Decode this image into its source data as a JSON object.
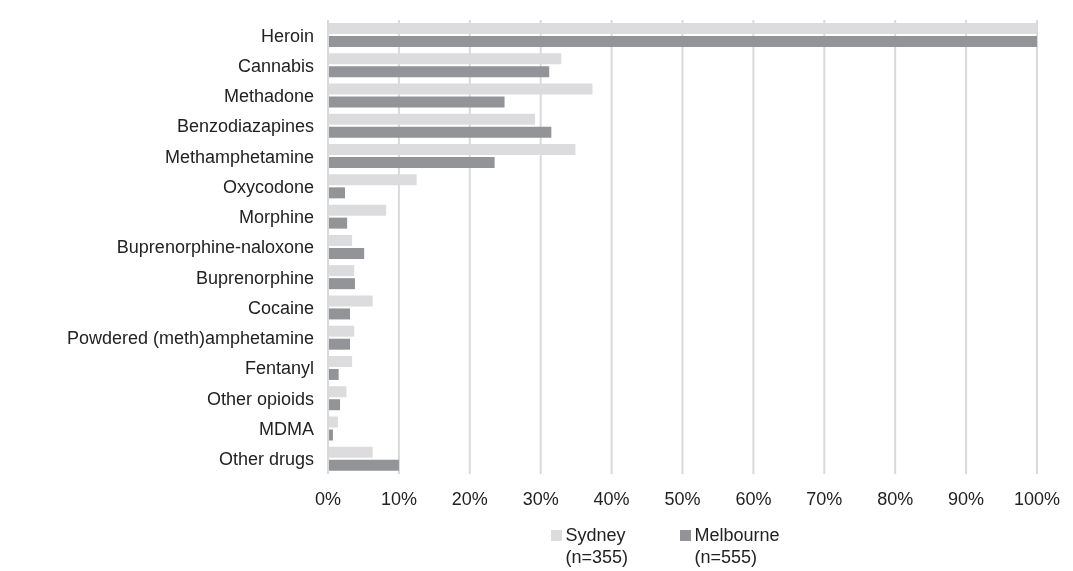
{
  "chart_data": {
    "type": "bar",
    "orientation": "horizontal",
    "categories": [
      "Heroin",
      "Cannabis",
      "Methadone",
      "Benzodiazapines",
      "Methamphetamine",
      "Oxycodone",
      "Morphine",
      "Buprenorphine-naloxone",
      "Buprenorphine",
      "Cocaine",
      "Powdered (meth)amphetamine",
      "Fentanyl",
      "Other opioids",
      "MDMA",
      "Other drugs"
    ],
    "series": [
      {
        "name": "Sydney (n=355)",
        "color": "#dcdcde",
        "values": [
          100,
          32.9,
          37.3,
          29.2,
          34.9,
          12.5,
          8.2,
          3.4,
          3.7,
          6.3,
          3.7,
          3.4,
          2.6,
          1.4,
          6.3
        ]
      },
      {
        "name": "Melbourne (n=555)",
        "color": "#939497",
        "values": [
          100,
          31.2,
          24.9,
          31.5,
          23.5,
          2.4,
          2.7,
          5.1,
          3.8,
          3.1,
          3.1,
          1.5,
          1.7,
          0.7,
          10.0
        ]
      }
    ],
    "xlim": [
      0,
      100
    ],
    "xticks": [
      {
        "value": 0,
        "label": "0%"
      },
      {
        "value": 10,
        "label": "10%"
      },
      {
        "value": 20,
        "label": "20%"
      },
      {
        "value": 30,
        "label": "30%"
      },
      {
        "value": 40,
        "label": "40%"
      },
      {
        "value": 50,
        "label": "50%"
      },
      {
        "value": 60,
        "label": "60%"
      },
      {
        "value": 70,
        "label": "70%"
      },
      {
        "value": 80,
        "label": "80%"
      },
      {
        "value": 90,
        "label": "90%"
      },
      {
        "value": 100,
        "label": "100%"
      }
    ],
    "grid": "x",
    "legend": "bottom"
  }
}
